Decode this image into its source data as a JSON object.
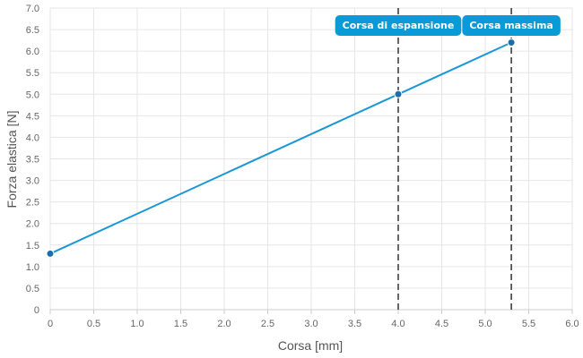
{
  "chart_data": {
    "type": "line",
    "xlabel": "Corsa [mm]",
    "ylabel": "Forza elastica [N]",
    "xlim": [
      0,
      6
    ],
    "ylim": [
      0,
      7
    ],
    "x_ticks": [
      0,
      0.5,
      1,
      1.5,
      2,
      2.5,
      3,
      3.5,
      4,
      4.5,
      5,
      5.5,
      6
    ],
    "x_tick_labels": [
      "0",
      "0.5",
      "1.0",
      "1.5",
      "2.0",
      "2.5",
      "3.0",
      "3.5",
      "4.0",
      "4.5",
      "5.0",
      "5.5",
      "6.0"
    ],
    "y_ticks": [
      0,
      0.5,
      1,
      1.5,
      2,
      2.5,
      3,
      3.5,
      4,
      4.5,
      5,
      5.5,
      6,
      6.5,
      7
    ],
    "y_tick_labels": [
      "0",
      "0.5",
      "1.0",
      "1.5",
      "2.0",
      "2.5",
      "3.0",
      "3.5",
      "4.0",
      "4.5",
      "5.0",
      "5.5",
      "6.0",
      "6.5",
      "7.0"
    ],
    "grid": true,
    "series": [
      {
        "color": "#1a97d5",
        "points": [
          {
            "x": 0,
            "y": 1.3
          },
          {
            "x": 4.0,
            "y": 5.0
          },
          {
            "x": 5.3,
            "y": 6.2
          }
        ]
      }
    ],
    "vertical_markers": [
      {
        "x": 4.0,
        "label": "Corsa di espansione"
      },
      {
        "x": 5.3,
        "label": "Corsa massima"
      }
    ],
    "colors": {
      "line": "#1a97d5",
      "point": "#1a6fa8",
      "marker_line": "#333333",
      "label_bg": "#0a9ad6",
      "grid": "#e6e6e6"
    }
  }
}
